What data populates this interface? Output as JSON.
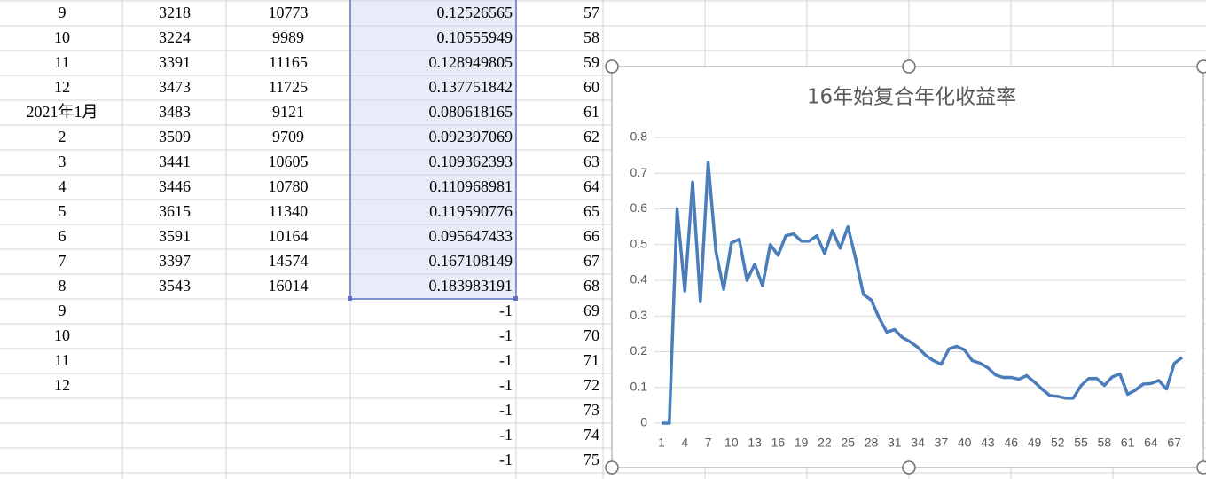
{
  "table": {
    "rows": [
      {
        "A": "9",
        "B": "3218",
        "C": "10773",
        "D": "0.12526565",
        "E": "57"
      },
      {
        "A": "10",
        "B": "3224",
        "C": "9989",
        "D": "0.10555949",
        "E": "58"
      },
      {
        "A": "11",
        "B": "3391",
        "C": "11165",
        "D": "0.128949805",
        "E": "59"
      },
      {
        "A": "12",
        "B": "3473",
        "C": "11725",
        "D": "0.137751842",
        "E": "60"
      },
      {
        "A": "2021年1月",
        "B": "3483",
        "C": "9121",
        "D": "0.080618165",
        "E": "61"
      },
      {
        "A": "2",
        "B": "3509",
        "C": "9709",
        "D": "0.092397069",
        "E": "62"
      },
      {
        "A": "3",
        "B": "3441",
        "C": "10605",
        "D": "0.109362393",
        "E": "63"
      },
      {
        "A": "4",
        "B": "3446",
        "C": "10780",
        "D": "0.110968981",
        "E": "64"
      },
      {
        "A": "5",
        "B": "3615",
        "C": "11340",
        "D": "0.119590776",
        "E": "65"
      },
      {
        "A": "6",
        "B": "3591",
        "C": "10164",
        "D": "0.095647433",
        "E": "66"
      },
      {
        "A": "7",
        "B": "3397",
        "C": "14574",
        "D": "0.167108149",
        "E": "67"
      },
      {
        "A": "8",
        "B": "3543",
        "C": "16014",
        "D": "0.183983191",
        "E": "68"
      },
      {
        "A": "9",
        "D": "-1",
        "E": "69"
      },
      {
        "A": "10",
        "D": "-1",
        "E": "70"
      },
      {
        "A": "11",
        "D": "-1",
        "E": "71"
      },
      {
        "A": "12",
        "D": "-1",
        "E": "72"
      },
      {
        "D": "-1",
        "E": "73"
      },
      {
        "D": "-1",
        "E": "74"
      },
      {
        "D": "-1",
        "E": "75"
      }
    ]
  },
  "chart_data": {
    "type": "line",
    "title": "16年始复合年化收益率",
    "color": "#4a7ebb",
    "grid": true,
    "ylim": [
      0,
      0.8
    ],
    "yticks": [
      0,
      0.1,
      0.2,
      0.3,
      0.4,
      0.5,
      0.6,
      0.7,
      0.8
    ],
    "categories": [
      1,
      null,
      null,
      4,
      null,
      null,
      7,
      null,
      null,
      10,
      null,
      null,
      13,
      null,
      null,
      16,
      null,
      null,
      19,
      null,
      null,
      22,
      null,
      null,
      25,
      null,
      null,
      28,
      null,
      null,
      31,
      null,
      null,
      34,
      null,
      null,
      37,
      null,
      null,
      40,
      null,
      null,
      43,
      null,
      null,
      46,
      null,
      null,
      49,
      null,
      null,
      52,
      null,
      null,
      55,
      null,
      null,
      58,
      null,
      null,
      61,
      null,
      null,
      64,
      null,
      null,
      67,
      null
    ],
    "values": [
      0,
      0,
      0.6,
      0.37,
      0.675,
      0.34,
      0.73,
      0.48,
      0.375,
      0.505,
      0.515,
      0.4,
      0.445,
      0.385,
      0.5,
      0.47,
      0.525,
      0.53,
      0.51,
      0.51,
      0.525,
      0.475,
      0.54,
      0.49,
      0.55,
      0.46,
      0.36,
      0.345,
      0.295,
      0.255,
      0.262,
      0.24,
      0.228,
      0.212,
      0.19,
      0.175,
      0.165,
      0.208,
      0.215,
      0.205,
      0.175,
      0.168,
      0.155,
      0.135,
      0.128,
      0.128,
      0.123,
      0.133,
      0.115,
      0.095,
      0.077,
      0.075,
      0.07,
      0.07,
      0.105,
      0.125,
      0.12526565,
      0.10555949,
      0.128949805,
      0.137751842,
      0.080618165,
      0.092397069,
      0.109362393,
      0.110968981,
      0.119590776,
      0.095647433,
      0.167108149,
      0.183983191
    ]
  }
}
